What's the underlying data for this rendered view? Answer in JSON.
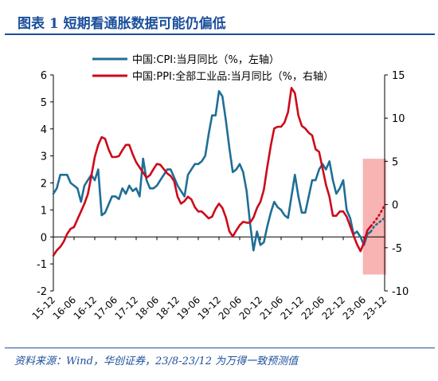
{
  "header": {
    "title": "图表 1   短期看通胀数据可能仍偏低"
  },
  "footer": {
    "source": "资料来源：Wind，华创证券，23/8-23/12 为万得一致预测值"
  },
  "colors": {
    "cpi": "#1f6e96",
    "ppi": "#cc0a1a",
    "forecast_box": "#f7a6a6",
    "header": "#1b4f9c"
  },
  "chart_data": {
    "type": "line",
    "legend_position": "top-left",
    "x_tick_labels": [
      "15-12",
      "16-06",
      "16-12",
      "17-06",
      "17-12",
      "18-06",
      "18-12",
      "19-06",
      "19-12",
      "20-06",
      "20-12",
      "21-06",
      "21-12",
      "22-06",
      "22-12",
      "23-06",
      "23-12"
    ],
    "y_left": {
      "ylim": [
        -2,
        6
      ],
      "ticks": [
        -2,
        -1,
        0,
        1,
        2,
        3,
        4,
        5,
        6
      ]
    },
    "y_right": {
      "ylim": [
        -10,
        15
      ],
      "ticks": [
        -10,
        -5,
        0,
        5,
        10,
        15
      ]
    },
    "forecast_range": {
      "start": "23-08",
      "end": "23-12",
      "y_right_low": -8.1,
      "y_right_high": 5.3
    },
    "series": [
      {
        "name": "中国:CPI:当月同比（%，左轴）",
        "axis": "left",
        "start": "15-12",
        "end": "23-12",
        "forecast_from": "23-08",
        "values": [
          1.6,
          1.8,
          2.3,
          2.3,
          2.3,
          2.0,
          1.9,
          1.8,
          1.3,
          1.9,
          2.1,
          2.3,
          2.1,
          2.5,
          0.8,
          0.9,
          1.2,
          1.5,
          1.5,
          1.4,
          1.8,
          1.6,
          1.9,
          1.7,
          1.8,
          1.5,
          2.9,
          2.1,
          1.8,
          1.8,
          1.9,
          2.1,
          2.3,
          2.5,
          2.5,
          2.2,
          1.9,
          1.7,
          1.5,
          2.3,
          2.5,
          2.7,
          2.7,
          2.8,
          3.0,
          3.8,
          4.5,
          4.5,
          5.4,
          5.2,
          4.3,
          3.3,
          2.4,
          2.5,
          2.7,
          2.4,
          1.7,
          0.5,
          -0.5,
          0.2,
          -0.3,
          -0.2,
          0.4,
          0.9,
          1.3,
          1.1,
          1.0,
          0.8,
          0.7,
          1.5,
          2.3,
          1.5,
          0.9,
          0.9,
          1.5,
          2.1,
          2.1,
          2.5,
          2.7,
          2.5,
          2.8,
          2.1,
          1.6,
          1.8,
          2.1,
          1.0,
          0.7,
          0.1,
          0.2,
          0.0,
          -0.3,
          0.1,
          0.2,
          0.4,
          0.5,
          0.6,
          0.7
        ]
      },
      {
        "name": "中国:PPI:全部工业品:当月同比（%，右轴）",
        "axis": "right",
        "start": "15-12",
        "end": "23-12",
        "forecast_from": "23-08",
        "values": [
          -5.9,
          -5.3,
          -4.9,
          -4.3,
          -3.4,
          -2.8,
          -2.6,
          -1.7,
          -0.8,
          0.1,
          1.2,
          3.3,
          5.5,
          6.9,
          7.8,
          7.6,
          6.4,
          5.5,
          5.5,
          5.6,
          6.3,
          6.9,
          6.9,
          5.8,
          4.9,
          4.3,
          3.7,
          3.1,
          3.4,
          4.1,
          4.7,
          4.6,
          4.1,
          3.6,
          3.3,
          2.7,
          0.9,
          0.1,
          0.4,
          0.9,
          0.6,
          -0.3,
          -0.8,
          -0.8,
          -1.2,
          -1.6,
          -1.4,
          -0.5,
          0.1,
          -0.4,
          -1.5,
          -3.1,
          -3.7,
          -3.0,
          -2.4,
          -2.0,
          -2.1,
          -2.1,
          -1.5,
          -0.4,
          0.3,
          1.7,
          4.4,
          6.8,
          8.8,
          9.0,
          9.0,
          9.5,
          10.7,
          13.5,
          12.9,
          10.3,
          9.1,
          8.8,
          8.3,
          8.0,
          6.4,
          6.1,
          4.2,
          2.3,
          0.9,
          -1.3,
          -1.3,
          -0.8,
          -0.8,
          -1.4,
          -2.5,
          -3.6,
          -4.6,
          -5.4,
          -4.4,
          -3.0,
          -2.5,
          -2.0,
          -1.5,
          -0.8,
          -0.1
        ]
      }
    ]
  }
}
